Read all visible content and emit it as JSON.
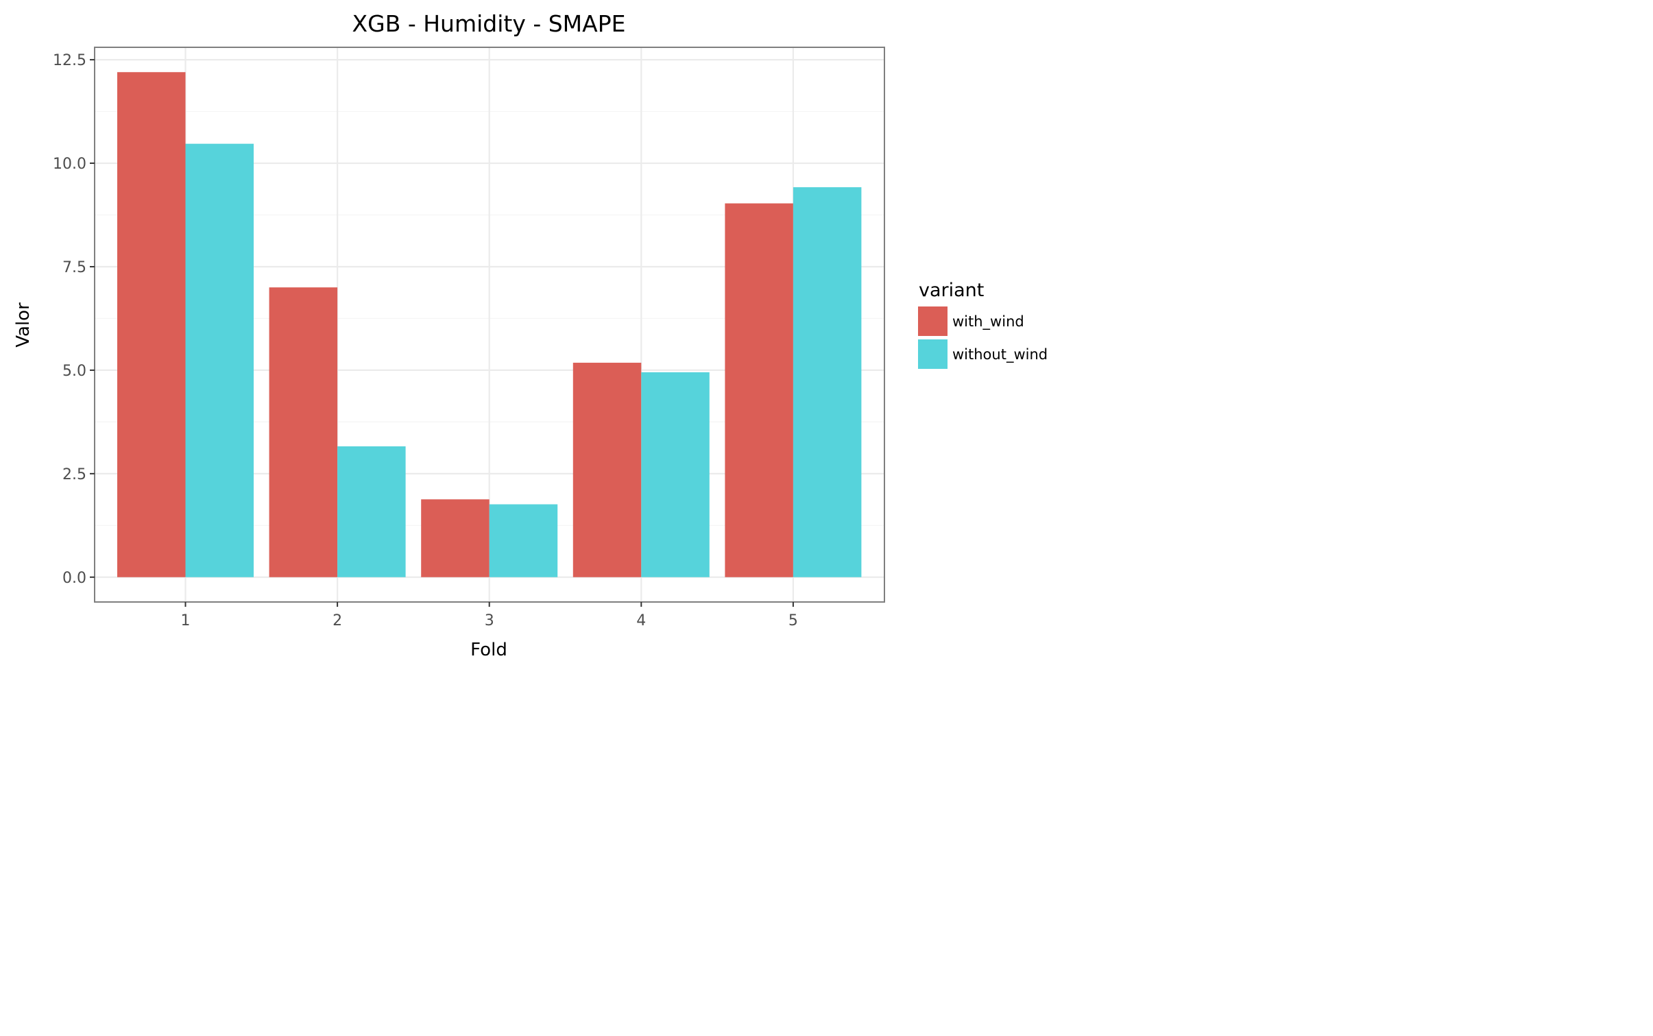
{
  "chart_data": {
    "type": "bar",
    "title": "XGB - Humidity - SMAPE",
    "xlabel": "Fold",
    "ylabel": "Valor",
    "categories": [
      "1",
      "2",
      "3",
      "4",
      "5"
    ],
    "series": [
      {
        "name": "with_wind",
        "values": [
          12.2,
          7.0,
          1.88,
          5.18,
          9.03
        ],
        "color": "#DB5E56"
      },
      {
        "name": "without_wind",
        "values": [
          10.47,
          3.16,
          1.76,
          4.95,
          9.42
        ],
        "color": "#56D3DB"
      }
    ],
    "y_ticks": [
      "0.0",
      "2.5",
      "5.0",
      "7.5",
      "10.0",
      "12.5"
    ],
    "ylim": [
      -0.6,
      12.8
    ],
    "grid": true,
    "legend": {
      "title": "variant",
      "position": "right"
    },
    "colors": {
      "panel_border": "#7f7f7f",
      "grid_major": "#ebebeb",
      "grid_minor": "#f5f5f5",
      "tick_label": "#4d4d4d"
    }
  }
}
